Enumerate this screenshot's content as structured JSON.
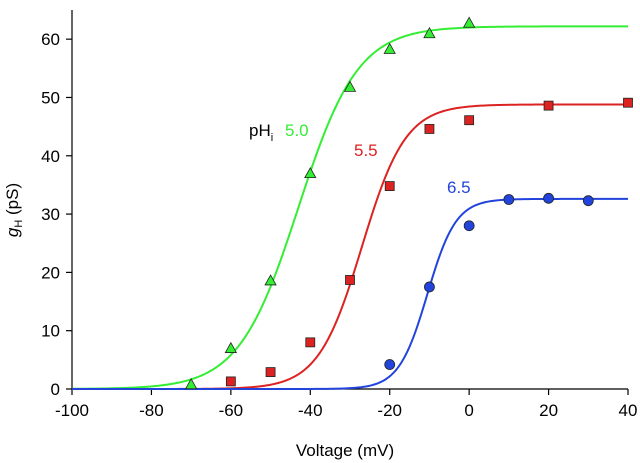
{
  "chart_data": {
    "type": "scatter",
    "title": "",
    "xlabel": "Voltage (mV)",
    "ylabel_main": "g",
    "ylabel_sub": "H",
    "ylabel_rest": " (pS)",
    "xlim": [
      -100,
      40
    ],
    "ylim": [
      0,
      65
    ],
    "xticks": [
      -100,
      -80,
      -60,
      -40,
      -20,
      0,
      20,
      40
    ],
    "yticks": [
      0,
      10,
      20,
      30,
      40,
      50,
      60
    ],
    "grid": false,
    "legend": {
      "main": "pH",
      "sub": "i"
    },
    "series": [
      {
        "name": "5.0",
        "color": "#33ee33",
        "marker": "triangle",
        "x": [
          -70,
          -60,
          -50,
          -40,
          -30,
          -20,
          -10,
          0
        ],
        "y": [
          0.8,
          7,
          18.6,
          37,
          51.8,
          58.3,
          61,
          62.8
        ],
        "fit": {
          "gmax": 62.2,
          "vhalf": -43,
          "k": 7.5
        }
      },
      {
        "name": "5.5",
        "color": "#dd2222",
        "marker": "square",
        "x": [
          -60,
          -50,
          -40,
          -30,
          -20,
          -10,
          0,
          20,
          40
        ],
        "y": [
          1.3,
          2.9,
          8,
          18.7,
          34.8,
          44.6,
          46.1,
          48.6,
          49.1
        ],
        "fit": {
          "gmax": 48.8,
          "vhalf": -27,
          "k": 5.5
        }
      },
      {
        "name": "6.5",
        "color": "#2244dd",
        "marker": "circle",
        "x": [
          -20,
          -10,
          0,
          10,
          20,
          30
        ],
        "y": [
          4.2,
          17.5,
          28,
          32.5,
          32.7,
          32.3
        ],
        "fit": {
          "gmax": 32.6,
          "vhalf": -10.5,
          "k": 3.6
        }
      }
    ]
  }
}
